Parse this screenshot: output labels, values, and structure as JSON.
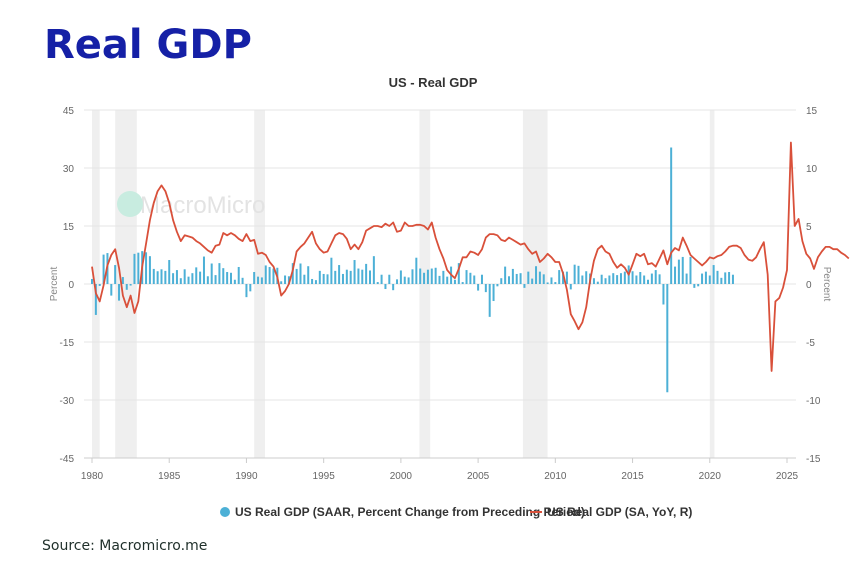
{
  "page": {
    "title": "Real GDP",
    "source": "Source: Macromicro.me"
  },
  "chart_data": {
    "type": "bar+line",
    "title": "US - Real GDP",
    "watermark": "MacroMicro",
    "xlabel": "",
    "ylabel_left": "Percent",
    "ylabel_right": "Percent",
    "xlim": [
      1980,
      2025
    ],
    "ylim_left": [
      -45,
      45
    ],
    "ylim_right": [
      -15,
      15
    ],
    "xticks": [
      "1980",
      "1985",
      "1990",
      "1995",
      "2000",
      "2005",
      "2010",
      "2015",
      "2020",
      "2025"
    ],
    "yticks_left": [
      "45",
      "30",
      "15",
      "0",
      "-15",
      "-30",
      "-45"
    ],
    "yticks_right": [
      "15",
      "10",
      "5",
      "0",
      "-5",
      "-10",
      "-15"
    ],
    "grid": true,
    "legend_position": "bottom",
    "colors": {
      "bars": "#4cb0d6",
      "line": "#d9503a",
      "recession": "#efefef",
      "grid": "#e6e6e6"
    },
    "recessions": [
      [
        1980.0,
        1980.5
      ],
      [
        1981.5,
        1982.9
      ],
      [
        1990.5,
        1991.2
      ],
      [
        2001.2,
        2001.9
      ],
      [
        2007.9,
        2009.5
      ],
      [
        2020.0,
        2020.3
      ]
    ],
    "series": [
      {
        "name": "US Real GDP (SAAR, Percent Change from Preceding Period)",
        "type": "bar",
        "axis": "left",
        "x_start": 1980.0,
        "x_step": 0.25,
        "values": [
          1.3,
          -8.0,
          -0.5,
          7.6,
          8.0,
          -3.0,
          4.9,
          -4.3,
          1.8,
          -1.5,
          -0.4,
          7.8,
          8.1,
          8.5,
          8.2,
          7.2,
          3.9,
          3.3,
          3.8,
          3.4,
          6.2,
          2.8,
          3.6,
          1.5,
          3.8,
          1.9,
          2.8,
          4.3,
          3.2,
          7.1,
          2.0,
          5.3,
          2.3,
          5.4,
          4.1,
          3.1,
          2.9,
          1.1,
          4.4,
          1.6,
          -3.4,
          -1.9,
          3.1,
          1.9,
          1.7,
          4.8,
          4.4,
          4.0,
          4.2,
          0.7,
          2.2,
          2.0,
          5.4,
          3.9,
          5.3,
          2.4,
          4.6,
          1.3,
          1.0,
          3.4,
          2.6,
          2.5,
          6.8,
          3.4,
          4.9,
          2.6,
          3.7,
          3.4,
          6.2,
          4.0,
          3.7,
          5.2,
          3.5,
          7.2,
          0.5,
          2.4,
          -1.3,
          2.4,
          -1.6,
          1.2,
          3.5,
          1.9,
          1.7,
          3.8,
          6.8,
          4.0,
          2.9,
          3.7,
          4.0,
          4.2,
          2.1,
          3.4,
          1.9,
          4.5,
          1.1,
          5.4,
          0.5,
          3.6,
          2.9,
          2.2,
          -1.7,
          2.4,
          -2.1,
          -8.5,
          -4.4,
          -0.6,
          1.5,
          4.5,
          2.0,
          3.9,
          2.6,
          2.8,
          -1.0,
          3.2,
          1.4,
          4.6,
          3.2,
          2.5,
          0.4,
          1.7,
          0.5,
          3.6,
          3.2,
          3.2,
          -1.4,
          5.0,
          4.7,
          2.2,
          3.3,
          2.7,
          1.5,
          0.6,
          2.4,
          1.5,
          2.2,
          2.8,
          2.3,
          2.8,
          3.2,
          4.8,
          3.3,
          2.2,
          3.1,
          2.2,
          1.1,
          2.7,
          3.6,
          2.5,
          -5.3,
          -28.0,
          35.3,
          4.5,
          6.3,
          7.0,
          2.7,
          7.0,
          -1.0,
          -0.6,
          2.7,
          3.2,
          2.2,
          4.9,
          3.4,
          1.6,
          3.0,
          3.1,
          2.4
        ]
      },
      {
        "name": "US Real GDP (SA, YoY, R)",
        "type": "line",
        "axis": "right",
        "x_start": 1980.0,
        "x_step": 0.25,
        "values": [
          1.5,
          -0.8,
          -1.5,
          -0.1,
          1.6,
          2.5,
          3.0,
          1.4,
          -1.0,
          -2.0,
          -1.0,
          -2.5,
          -1.5,
          1.5,
          3.5,
          5.5,
          7.0,
          8.0,
          8.5,
          8.0,
          7.0,
          5.5,
          4.5,
          3.7,
          4.2,
          4.1,
          4.0,
          3.7,
          3.5,
          3.2,
          2.9,
          2.7,
          3.3,
          3.4,
          4.4,
          4.2,
          4.4,
          4.2,
          3.9,
          3.7,
          4.3,
          3.7,
          3.8,
          2.6,
          2.7,
          2.5,
          1.9,
          1.5,
          0.6,
          -1.0,
          -0.6,
          0.0,
          1.2,
          2.8,
          3.2,
          3.5,
          4.0,
          4.5,
          3.5,
          3.0,
          2.7,
          2.8,
          3.5,
          4.2,
          4.4,
          4.3,
          3.9,
          3.0,
          3.4,
          3.0,
          3.6,
          4.6,
          4.8,
          5.0,
          5.0,
          4.9,
          5.2,
          5.0,
          5.3,
          4.5,
          4.6,
          5.3,
          5.0,
          5.0,
          5.1,
          5.1,
          5.0,
          4.7,
          5.3,
          4.0,
          3.0,
          2.2,
          1.2,
          0.8,
          0.5,
          1.3,
          2.3,
          2.3,
          2.8,
          2.7,
          2.5,
          3.0,
          4.0,
          4.3,
          4.3,
          4.2,
          3.8,
          3.7,
          4.0,
          3.8,
          3.6,
          3.4,
          3.5,
          3.0,
          2.6,
          2.8,
          1.9,
          2.2,
          2.6,
          2.3,
          1.9,
          1.9,
          0.9,
          -0.5,
          -2.6,
          -3.2,
          -3.9,
          -3.3,
          -2.0,
          0.3,
          2.0,
          3.0,
          3.3,
          2.8,
          2.6,
          1.9,
          1.4,
          1.7,
          1.4,
          0.8,
          1.7,
          2.6,
          2.4,
          2.6,
          1.7,
          1.8,
          1.5,
          2.2,
          2.9,
          1.7,
          2.7,
          3.1,
          2.9,
          4.0,
          3.3,
          2.5,
          2.2,
          1.9,
          1.6,
          1.9,
          2.3,
          2.2,
          2.4,
          2.5,
          2.8,
          3.2,
          3.3,
          3.3,
          3.1,
          2.5,
          2.1,
          2.0,
          2.3,
          3.0,
          3.6,
          0.8,
          -7.5,
          -1.5,
          -1.2,
          -0.3,
          1.2,
          12.2,
          5.0,
          5.6,
          3.7,
          2.6,
          2.2,
          1.3,
          2.3,
          2.8,
          3.2,
          3.2,
          3.0,
          3.0,
          2.7,
          2.5,
          2.2
        ]
      }
    ]
  }
}
